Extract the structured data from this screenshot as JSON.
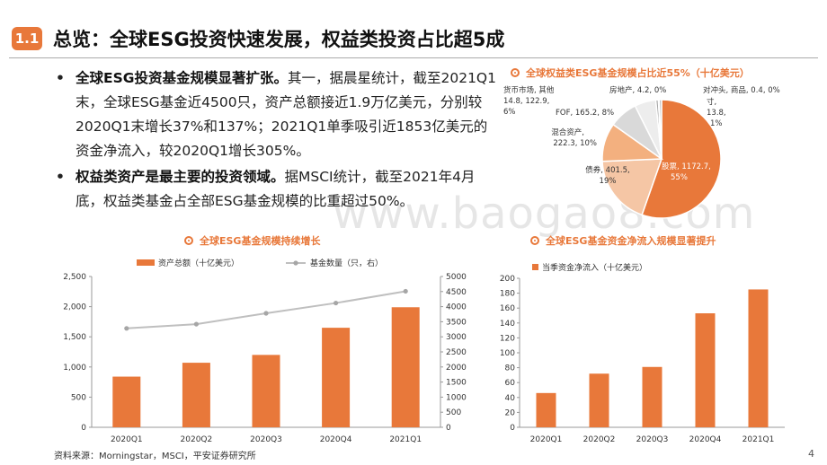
{
  "header": {
    "badge": "1.1",
    "title": "总览：全球ESG投资快速发展，权益类投资占比超5成"
  },
  "bullets": [
    {
      "bold": "全球ESG投资基金规模显著扩张。",
      "text": "其一，据晨星统计，截至2021Q1末，全球ESG基金近4500只，资产总额接近1.9万亿美元，分别较2020Q1末增长37%和137%；2021Q1单季吸引近1853亿美元的资金净流入，较2020Q1增长305%。"
    },
    {
      "bold": "权益类资产是最主要的投资领域。",
      "text": "据MSCI统计，截至2021年4月底，权益类基金占全部ESG基金规模的比重超过50%。"
    }
  ],
  "watermark": "www.baogao8.com",
  "source": "资料来源：Morningstar，MSCI，平安证券研究所",
  "page_number": "4",
  "colors": {
    "accent": "#E8783A",
    "line": "#BFBFBF",
    "pie": [
      "#E8783A",
      "#F6C8A6",
      "#F4B183",
      "#D9D9D9",
      "#ECECEC",
      "#A6A6A6",
      "#C8C8C8",
      "#7F7F7F"
    ]
  },
  "chart_data": [
    {
      "id": "pie",
      "type": "pie",
      "title": "全球权益类ESG基金规模占比近55%（十亿美元）",
      "slices": [
        {
          "label": "股票",
          "value": 1172.7,
          "pct": "55%",
          "display": "股票, 1172.7, 55%"
        },
        {
          "label": "债券",
          "value": 401.5,
          "pct": "19%",
          "display": "债券, 401.5, 19%"
        },
        {
          "label": "混合资产",
          "value": 222.3,
          "pct": "10%",
          "display": "混合资产, 222.3, 10%"
        },
        {
          "label": "FOF",
          "value": 165.2,
          "pct": "8%",
          "display": "FOF, 165.2, 8%"
        },
        {
          "label": "其他",
          "value": 122.9,
          "pct": "6%",
          "display": "其他, 122.9, 6%"
        },
        {
          "label": "货币市场",
          "value": 14.8,
          "pct": "1%",
          "display": "货币市场, 14.8, 1%"
        },
        {
          "label": "房地产",
          "value": 4.2,
          "pct": "0%",
          "display": "房地产, 4.2, 0%"
        },
        {
          "label": "商品",
          "value": 0.4,
          "pct": "0%",
          "display": "商品, 0.4, 0%"
        },
        {
          "label": "对冲头寸",
          "value": 13.8,
          "pct": "1%",
          "display": "对冲头寸, 13.8, 1%"
        }
      ]
    },
    {
      "id": "growth",
      "type": "bar",
      "title": "全球ESG基金规模持续增长",
      "categories": [
        "2020Q1",
        "2020Q2",
        "2020Q3",
        "2020Q4",
        "2021Q1"
      ],
      "series": [
        {
          "name": "资产总额（十亿美元）",
          "type": "bar",
          "axis": "left",
          "values": [
            840,
            1070,
            1200,
            1650,
            1990
          ]
        },
        {
          "name": "基金数量（只，右）",
          "type": "line",
          "axis": "right",
          "values": [
            3280,
            3420,
            3780,
            4120,
            4510
          ]
        }
      ],
      "ylim": [
        0,
        2500
      ],
      "yticks": [
        "0",
        "500",
        "1,000",
        "1,500",
        "2,000",
        "2,500"
      ],
      "y2lim": [
        0,
        5000
      ],
      "y2ticks": [
        "0",
        "500",
        "1000",
        "1500",
        "2000",
        "2500",
        "3000",
        "3500",
        "4000",
        "4500",
        "5000"
      ],
      "legend": "top"
    },
    {
      "id": "flow",
      "type": "bar",
      "title": "全球ESG基金资金净流入规模显著提升",
      "categories": [
        "2020Q1",
        "2020Q2",
        "2020Q3",
        "2020Q4",
        "2021Q1"
      ],
      "series": [
        {
          "name": "当季资金净流入（十亿美元）",
          "values": [
            46,
            72,
            81,
            153,
            185
          ]
        }
      ],
      "ylim": [
        0,
        200
      ],
      "yticks": [
        "0",
        "20",
        "40",
        "60",
        "80",
        "100",
        "120",
        "140",
        "160",
        "180",
        "200"
      ],
      "legend": "top-left"
    }
  ]
}
